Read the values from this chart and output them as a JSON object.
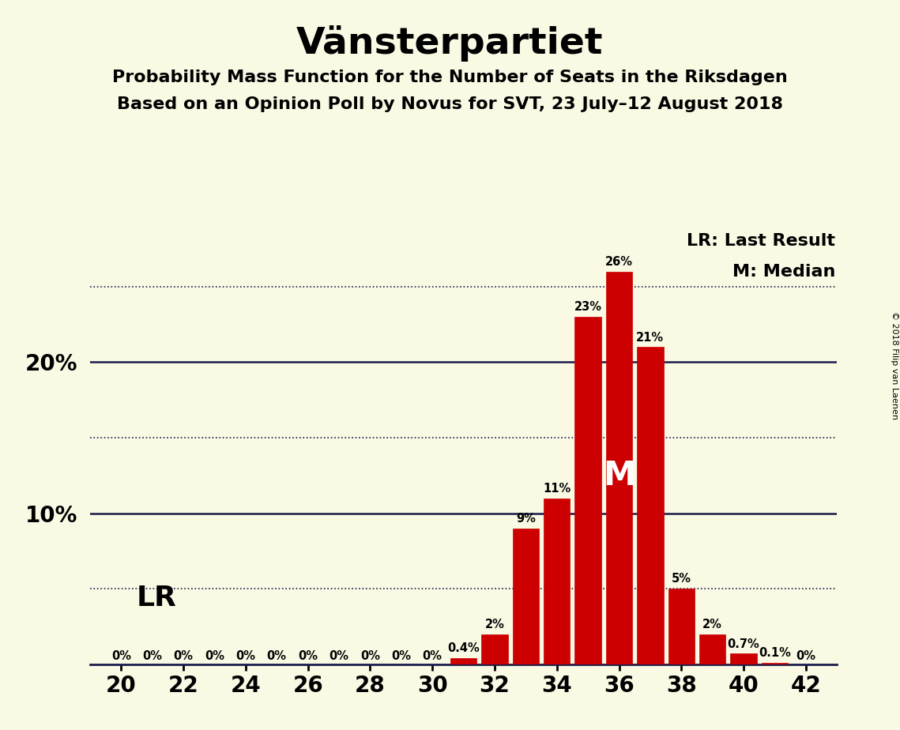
{
  "title": "Vänsterpartiet",
  "subtitle1": "Probability Mass Function for the Number of Seats in the Riksdagen",
  "subtitle2": "Based on an Opinion Poll by Novus for SVT, 23 July–12 August 2018",
  "copyright": "© 2018 Filip van Laenen",
  "seats": [
    20,
    21,
    22,
    23,
    24,
    25,
    26,
    27,
    28,
    29,
    30,
    31,
    32,
    33,
    34,
    35,
    36,
    37,
    38,
    39,
    40,
    41,
    42
  ],
  "probabilities": [
    0.0,
    0.0,
    0.0,
    0.0,
    0.0,
    0.0,
    0.0,
    0.0,
    0.0,
    0.0,
    0.0,
    0.4,
    2.0,
    9.0,
    11.0,
    23.0,
    26.0,
    21.0,
    5.0,
    2.0,
    0.7,
    0.1,
    0.0
  ],
  "bar_color": "#CC0000",
  "background_color": "#FAF9E4",
  "grid_solid_color": "#1a1a4a",
  "grid_dot_color": "#1a1a4a",
  "text_color": "#000000",
  "axis_color": "#1a1a4a",
  "LR_seat": 21,
  "median_seat": 36,
  "ylim": [
    0,
    29
  ],
  "xlim": [
    19.0,
    43.0
  ],
  "solid_yticks": [
    10,
    20
  ],
  "dotted_yticks": [
    5,
    15,
    25
  ],
  "legend_LR": "LR: Last Result",
  "legend_M": "M: Median"
}
